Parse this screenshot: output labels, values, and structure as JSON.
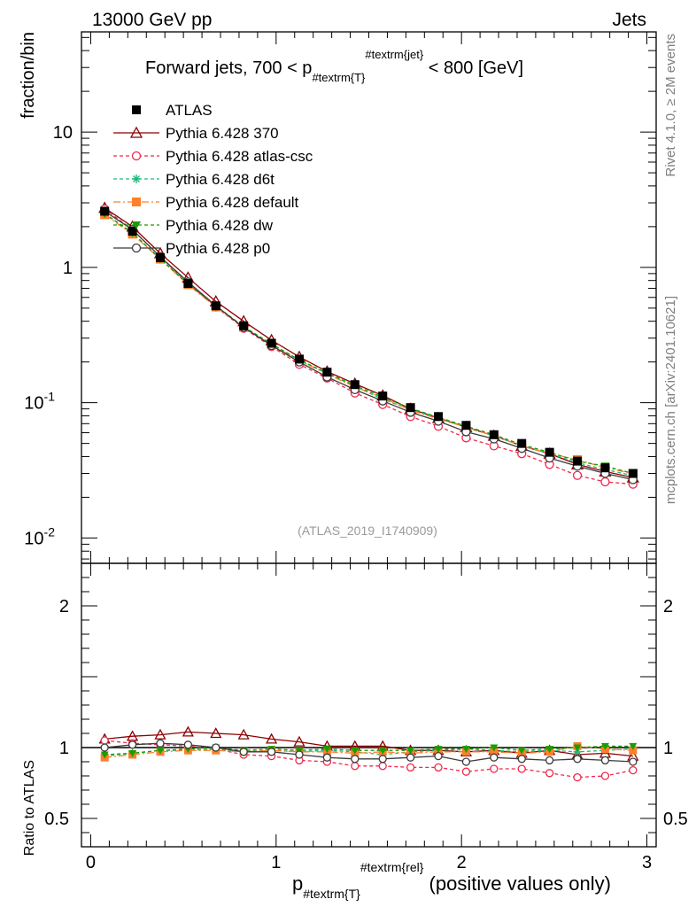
{
  "header": {
    "energy_label": "13000 GeV pp",
    "category_label": "Jets"
  },
  "side_labels": {
    "rivet": "Rivet 4.1.0, ≥ 2M events",
    "mcplots": "mcplots.cern.ch [arXiv:2401.10621]"
  },
  "chart_data": {
    "type": "line",
    "title": "Forward jets, 700 < p",
    "title_sub": "#textrm{T}",
    "title_sup": "#textrm{jet}",
    "title_tail": " < 800 [GeV]",
    "analysis_id": "(ATLAS_2019_I1740909)",
    "ylabel": "fraction/bin",
    "ratio_ylabel": "Ratio to ATLAS",
    "xlabel_main": "p",
    "xlabel_sub": "#textrm{T}",
    "xlabel_sup": "#textrm{rel}",
    "xlabel_tail": " (positive values only)",
    "yscale": "log",
    "xlim": [
      -0.05,
      3.05
    ],
    "ylim": [
      0.0065,
      55
    ],
    "ratio_ylim": [
      0.3,
      2.3
    ],
    "x_ticks": [
      "0",
      "1",
      "2",
      "3"
    ],
    "y_ticks": [
      "10^-2",
      "10^-1",
      "1",
      "10"
    ],
    "ratio_ticks": [
      "0.5",
      "1",
      "2"
    ],
    "x": [
      0.075,
      0.225,
      0.375,
      0.525,
      0.675,
      0.825,
      0.975,
      1.125,
      1.275,
      1.425,
      1.575,
      1.725,
      1.875,
      2.025,
      2.175,
      2.325,
      2.475,
      2.625,
      2.775,
      2.925
    ],
    "series": [
      {
        "name": "ATLAS",
        "color": "#000000",
        "marker": "square",
        "dash": "none",
        "values": [
          2.6,
          1.85,
          1.18,
          0.76,
          0.52,
          0.37,
          0.275,
          0.21,
          0.168,
          0.136,
          0.112,
          0.092,
          0.079,
          0.068,
          0.058,
          0.05,
          0.043,
          0.037,
          0.033,
          0.03
        ]
      },
      {
        "name": "Pythia 6.428 370",
        "color": "#8b0000",
        "marker": "triangle",
        "dash": "none",
        "values": [
          2.75,
          2.0,
          1.27,
          0.84,
          0.56,
          0.4,
          0.29,
          0.218,
          0.17,
          0.138,
          0.113,
          0.09,
          0.077,
          0.066,
          0.057,
          0.048,
          0.042,
          0.035,
          0.031,
          0.028
        ],
        "ratio": [
          1.06,
          1.08,
          1.09,
          1.11,
          1.1,
          1.09,
          1.06,
          1.04,
          1.01,
          1.01,
          1.01,
          0.98,
          0.98,
          0.97,
          0.98,
          0.96,
          0.98,
          0.95,
          0.96,
          0.94
        ]
      },
      {
        "name": "Pythia 6.428 atlas-csc",
        "color": "#f0284c",
        "marker": "circle",
        "dash": "4,3",
        "values": [
          2.7,
          1.9,
          1.2,
          0.76,
          0.51,
          0.355,
          0.26,
          0.192,
          0.152,
          0.118,
          0.097,
          0.079,
          0.067,
          0.055,
          0.048,
          0.042,
          0.035,
          0.029,
          0.026,
          0.025
        ],
        "ratio": [
          1.05,
          1.03,
          1.02,
          1.01,
          0.99,
          0.95,
          0.94,
          0.91,
          0.9,
          0.87,
          0.87,
          0.86,
          0.86,
          0.83,
          0.85,
          0.85,
          0.82,
          0.79,
          0.8,
          0.84
        ]
      },
      {
        "name": "Pythia 6.428 d6t",
        "color": "#1dbb7e",
        "marker": "star",
        "dash": "4,3",
        "values": [
          2.5,
          1.8,
          1.15,
          0.75,
          0.52,
          0.36,
          0.27,
          0.205,
          0.165,
          0.132,
          0.106,
          0.089,
          0.077,
          0.067,
          0.057,
          0.048,
          0.042,
          0.036,
          0.032,
          0.029
        ],
        "ratio": [
          0.94,
          0.96,
          0.98,
          0.98,
          0.99,
          0.97,
          0.98,
          0.97,
          0.98,
          0.97,
          0.95,
          0.97,
          0.98,
          0.99,
          0.98,
          0.97,
          0.98,
          0.97,
          0.98,
          0.99
        ]
      },
      {
        "name": "Pythia 6.428 default",
        "color": "#ff7f2a",
        "marker": "square",
        "dash": "8,3,2,3",
        "values": [
          2.45,
          1.76,
          1.15,
          0.745,
          0.51,
          0.36,
          0.268,
          0.205,
          0.163,
          0.131,
          0.109,
          0.088,
          0.076,
          0.066,
          0.057,
          0.048,
          0.042,
          0.038,
          0.033,
          0.03
        ],
        "ratio": [
          0.93,
          0.95,
          0.97,
          0.98,
          0.98,
          0.97,
          0.98,
          0.97,
          0.97,
          0.96,
          0.97,
          0.96,
          0.97,
          0.97,
          0.97,
          0.96,
          0.97,
          1.01,
          0.99,
          0.98
        ]
      },
      {
        "name": "Pythia 6.428 dw",
        "color": "#1a9d00",
        "marker": "triangle-down",
        "dash": "4,3",
        "values": [
          2.5,
          1.8,
          1.16,
          0.755,
          0.52,
          0.365,
          0.272,
          0.207,
          0.166,
          0.134,
          0.11,
          0.091,
          0.078,
          0.067,
          0.058,
          0.049,
          0.043,
          0.037,
          0.034,
          0.03
        ],
        "ratio": [
          0.95,
          0.96,
          0.98,
          0.99,
          1.0,
          0.98,
          0.99,
          0.98,
          0.99,
          0.98,
          0.98,
          0.98,
          0.99,
          0.99,
          1.0,
          0.98,
          0.99,
          1.0,
          1.01,
          1.01
        ]
      },
      {
        "name": "Pythia 6.428 p0",
        "color": "#3b3b3b",
        "marker": "circle",
        "dash": "none",
        "values": [
          2.6,
          1.9,
          1.2,
          0.78,
          0.52,
          0.36,
          0.265,
          0.2,
          0.155,
          0.125,
          0.103,
          0.085,
          0.073,
          0.061,
          0.054,
          0.046,
          0.039,
          0.034,
          0.03,
          0.027
        ],
        "ratio": [
          1.0,
          1.02,
          1.03,
          1.02,
          1.0,
          0.97,
          0.97,
          0.95,
          0.93,
          0.92,
          0.92,
          0.93,
          0.94,
          0.9,
          0.93,
          0.92,
          0.91,
          0.92,
          0.91,
          0.9
        ]
      }
    ]
  }
}
